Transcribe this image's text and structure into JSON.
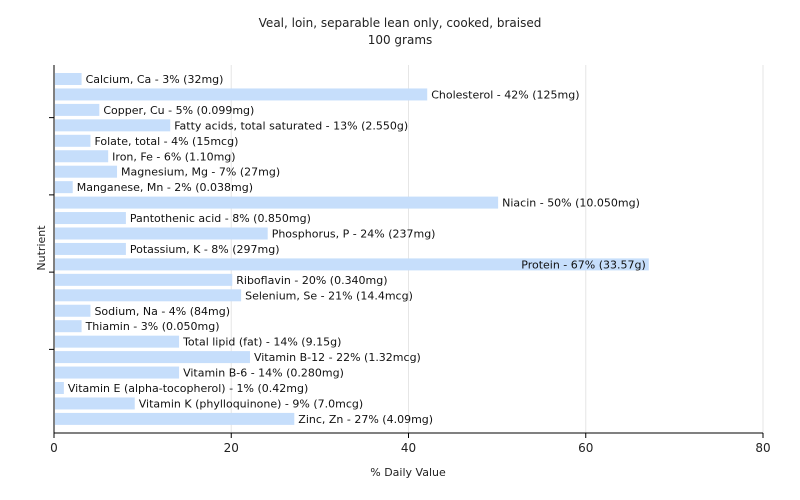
{
  "chart_data": {
    "type": "bar",
    "orientation": "horizontal",
    "title": "Veal, loin, separable lean only, cooked, braised",
    "subtitle": "100 grams",
    "xlabel": "% Daily Value",
    "ylabel": "Nutrient",
    "xlim": [
      0,
      80
    ],
    "xticks": [
      0,
      20,
      40,
      60,
      80
    ],
    "grid": true,
    "bar_color": "#c6defb",
    "grid_color": "#e6e6e6",
    "categories": [
      "Calcium, Ca",
      "Cholesterol",
      "Copper, Cu",
      "Fatty acids, total saturated",
      "Folate, total",
      "Iron, Fe",
      "Magnesium, Mg",
      "Manganese, Mn",
      "Niacin",
      "Pantothenic acid",
      "Phosphorus, P",
      "Potassium, K",
      "Protein",
      "Riboflavin",
      "Selenium, Se",
      "Sodium, Na",
      "Thiamin",
      "Total lipid (fat)",
      "Vitamin B-12",
      "Vitamin B-6",
      "Vitamin E (alpha-tocopherol)",
      "Vitamin K (phylloquinone)",
      "Zinc, Zn"
    ],
    "values": [
      3,
      42,
      5,
      13,
      4,
      6,
      7,
      2,
      50,
      8,
      24,
      8,
      67,
      20,
      21,
      4,
      3,
      14,
      22,
      14,
      1,
      9,
      27
    ],
    "labels": [
      "Calcium, Ca - 3% (32mg)",
      "Cholesterol - 42% (125mg)",
      "Copper, Cu - 5% (0.099mg)",
      "Fatty acids, total saturated - 13% (2.550g)",
      "Folate, total - 4% (15mcg)",
      "Iron, Fe - 6% (1.10mg)",
      "Magnesium, Mg - 7% (27mg)",
      "Manganese, Mn - 2% (0.038mg)",
      "Niacin - 50% (10.050mg)",
      "Pantothenic acid - 8% (0.850mg)",
      "Phosphorus, P - 24% (237mg)",
      "Potassium, K - 8% (297mg)",
      "Protein - 67% (33.57g)",
      "Riboflavin - 20% (0.340mg)",
      "Selenium, Se - 21% (14.4mcg)",
      "Sodium, Na - 4% (84mg)",
      "Thiamin - 3% (0.050mg)",
      "Total lipid (fat) - 14% (9.15g)",
      "Vitamin B-12 - 22% (1.32mcg)",
      "Vitamin B-6 - 14% (0.280mg)",
      "Vitamin E (alpha-tocopherol) - 1% (0.42mg)",
      "Vitamin K (phylloquinone) - 9% (7.0mcg)",
      "Zinc, Zn - 27% (4.09mg)"
    ]
  }
}
